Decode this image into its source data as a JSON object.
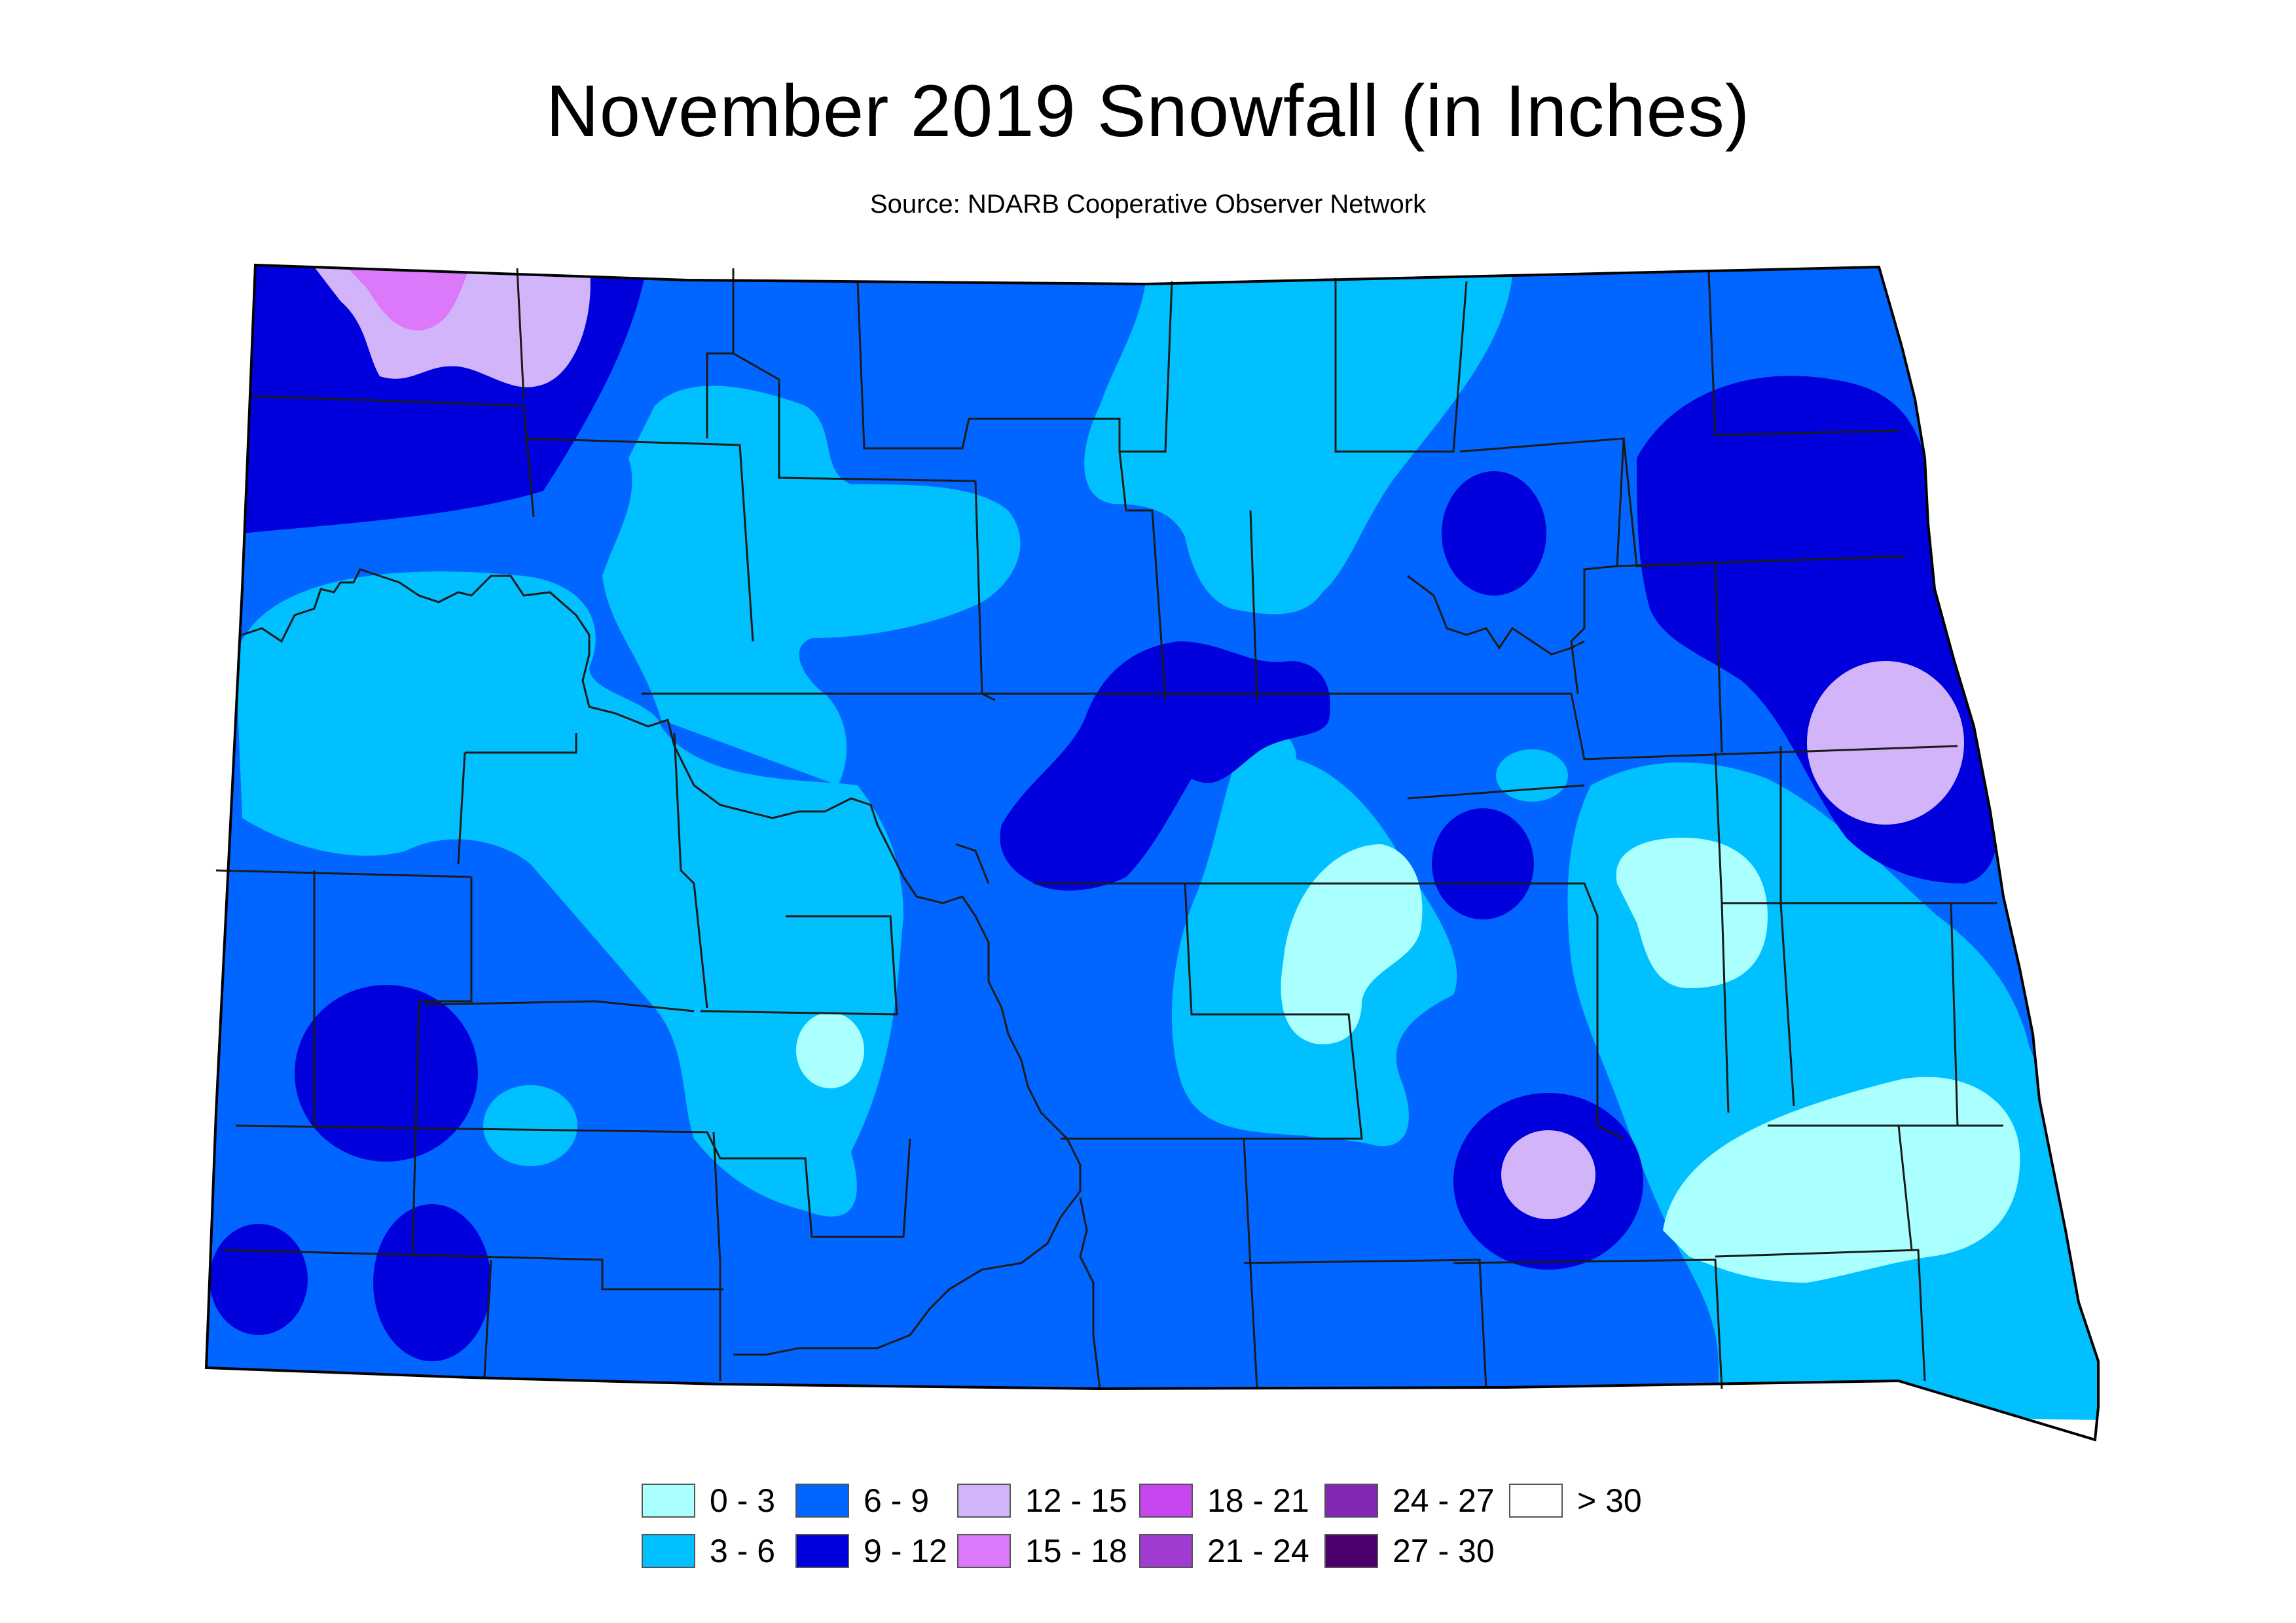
{
  "title": "November 2019 Snowfall (in Inches)",
  "subtitle": "Source: NDARB Cooperative Observer Network",
  "legend": [
    {
      "label": "0 - 3",
      "color": "#aaffff"
    },
    {
      "label": "3 - 6",
      "color": "#00c0ff"
    },
    {
      "label": "6 - 9",
      "color": "#0066ff"
    },
    {
      "label": "9 - 12",
      "color": "#0000dd"
    },
    {
      "label": "12 - 15",
      "color": "#d2b4fa"
    },
    {
      "label": "15 - 18",
      "color": "#dc78fa"
    },
    {
      "label": "18 - 21",
      "color": "#c846f0"
    },
    {
      "label": "21 - 24",
      "color": "#a03cd2"
    },
    {
      "label": "24 - 27",
      "color": "#8228b4"
    },
    {
      "label": "27 - 30",
      "color": "#4b006e"
    },
    {
      "label": "> 30",
      "color": "#ffffff"
    }
  ]
}
